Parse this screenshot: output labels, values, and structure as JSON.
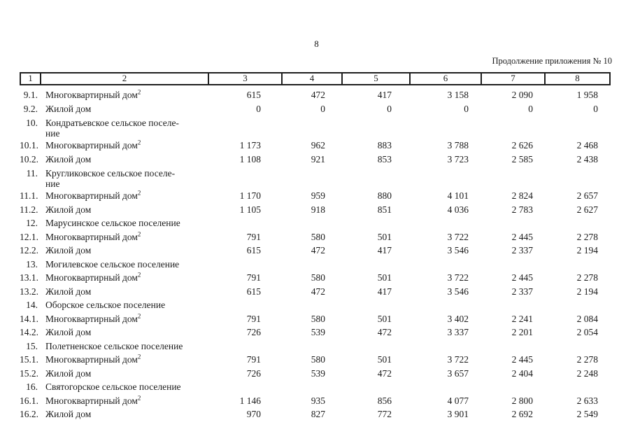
{
  "page": {
    "page_number": "8",
    "continuation_note": "Продолжение приложения № 10"
  },
  "colors": {
    "text": "#1a1a1a",
    "border": "#1f1f1f",
    "background": "#ffffff"
  },
  "table": {
    "column_headers": [
      "1",
      "2",
      "3",
      "4",
      "5",
      "6",
      "7",
      "8"
    ],
    "rows": [
      {
        "num": "9.1.",
        "label": "Многоквартирный дом",
        "sup": "2",
        "values": [
          "615",
          "472",
          "417",
          "3 158",
          "2 090",
          "1 958"
        ]
      },
      {
        "num": "9.2.",
        "label": "Жилой дом",
        "values": [
          "0",
          "0",
          "0",
          "0",
          "0",
          "0"
        ]
      },
      {
        "num": "10.",
        "label": "Кондратьевское сельское поселе-\nние",
        "section": true,
        "values": []
      },
      {
        "num": "10.1.",
        "label": "Многоквартирный дом",
        "sup": "2",
        "values": [
          "1 173",
          "962",
          "883",
          "3 788",
          "2 626",
          "2 468"
        ]
      },
      {
        "num": "10.2.",
        "label": "Жилой дом",
        "values": [
          "1 108",
          "921",
          "853",
          "3 723",
          "2 585",
          "2 438"
        ]
      },
      {
        "num": "11.",
        "label": "Кругликовское сельское поселе-\nние",
        "section": true,
        "values": []
      },
      {
        "num": "11.1.",
        "label": "Многоквартирный дом",
        "sup": "2",
        "values": [
          "1 170",
          "959",
          "880",
          "4 101",
          "2 824",
          "2 657"
        ]
      },
      {
        "num": "11.2.",
        "label": "Жилой дом",
        "values": [
          "1 105",
          "918",
          "851",
          "4 036",
          "2 783",
          "2 627"
        ]
      },
      {
        "num": "12.",
        "label": "Марусинское сельское поселение",
        "section": true,
        "values": []
      },
      {
        "num": "12.1.",
        "label": "Многоквартирный дом",
        "sup": "2",
        "values": [
          "791",
          "580",
          "501",
          "3 722",
          "2 445",
          "2 278"
        ]
      },
      {
        "num": "12.2.",
        "label": "Жилой дом",
        "values": [
          "615",
          "472",
          "417",
          "3 546",
          "2 337",
          "2 194"
        ]
      },
      {
        "num": "13.",
        "label": "Могилевское сельское поселение",
        "section": true,
        "values": []
      },
      {
        "num": "13.1.",
        "label": "Многоквартирный дом",
        "sup": "2",
        "values": [
          "791",
          "580",
          "501",
          "3 722",
          "2 445",
          "2 278"
        ]
      },
      {
        "num": "13.2.",
        "label": "Жилой дом",
        "values": [
          "615",
          "472",
          "417",
          "3 546",
          "2 337",
          "2 194"
        ]
      },
      {
        "num": "14.",
        "label": "Оборское сельское поселение",
        "section": true,
        "values": []
      },
      {
        "num": "14.1.",
        "label": "Многоквартирный дом",
        "sup": "2",
        "values": [
          "791",
          "580",
          "501",
          "3 402",
          "2 241",
          "2 084"
        ]
      },
      {
        "num": "14.2.",
        "label": "Жилой дом",
        "values": [
          "726",
          "539",
          "472",
          "3 337",
          "2 201",
          "2 054"
        ]
      },
      {
        "num": "15.",
        "label": "Полетненское сельское поселение",
        "section": true,
        "values": []
      },
      {
        "num": "15.1.",
        "label": "Многоквартирный дом",
        "sup": "2",
        "values": [
          "791",
          "580",
          "501",
          "3 722",
          "2 445",
          "2 278"
        ]
      },
      {
        "num": "15.2.",
        "label": "Жилой дом",
        "values": [
          "726",
          "539",
          "472",
          "3 657",
          "2 404",
          "2 248"
        ]
      },
      {
        "num": "16.",
        "label": "Святогорское сельское поселение",
        "section": true,
        "values": []
      },
      {
        "num": "16.1.",
        "label": "Многоквартирный дом",
        "sup": "2",
        "values": [
          "1 146",
          "935",
          "856",
          "4 077",
          "2 800",
          "2 633"
        ]
      },
      {
        "num": "16.2.",
        "label": "Жилой дом",
        "values": [
          "970",
          "827",
          "772",
          "3 901",
          "2 692",
          "2 549"
        ]
      }
    ]
  }
}
